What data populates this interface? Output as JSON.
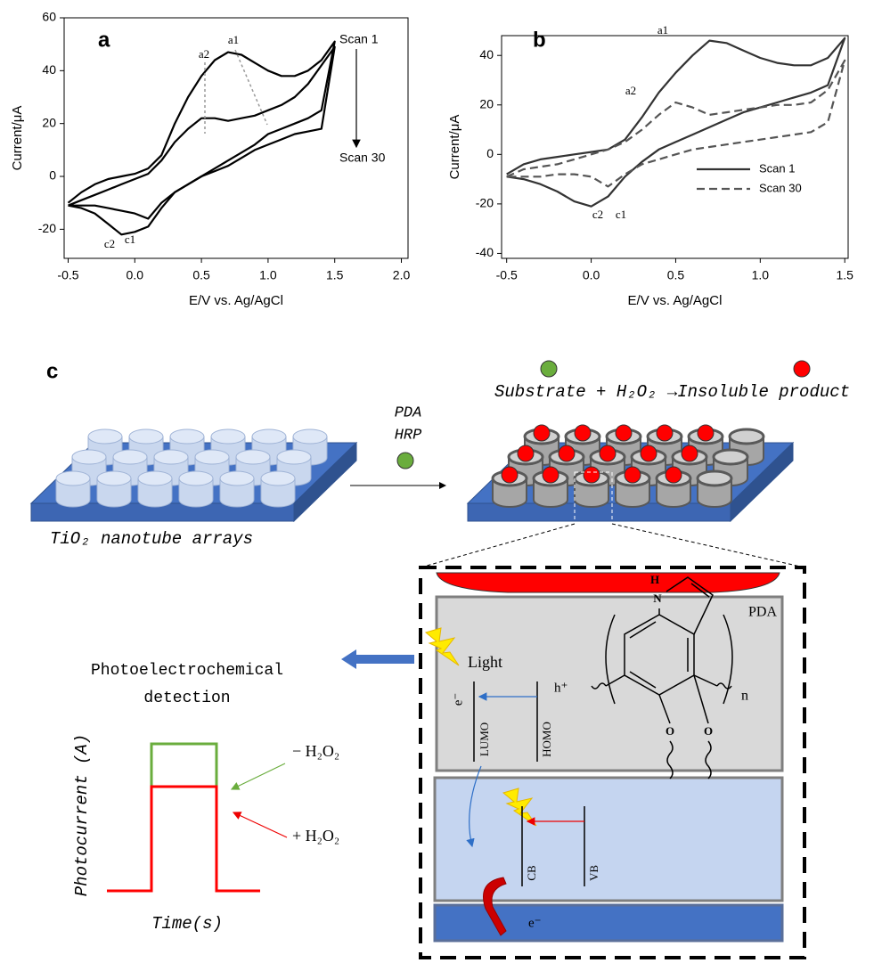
{
  "chart_data": [
    {
      "type": "line",
      "x_label": "E/V vs. Ag/AgCl",
      "y_label": "Current/μA",
      "x": [
        -0.5,
        -0.4,
        -0.3,
        -0.2,
        -0.1,
        0,
        0.1,
        0.2,
        0.3,
        0.4,
        0.5,
        0.6,
        0.7,
        0.8,
        0.9,
        1.0,
        1.1,
        1.2,
        1.3,
        1.4,
        1.5,
        1.4,
        1.3,
        1.2,
        1.1,
        1.0,
        0.9,
        0.8,
        0.7,
        0.6,
        0.5,
        0.4,
        0.3,
        0.2,
        0.1,
        0,
        -0.1,
        -0.2,
        -0.3,
        -0.4,
        -0.5
      ],
      "series": [
        {
          "color": "#000000",
          "values": [
            -10,
            -6,
            -3,
            -1,
            0,
            1,
            3,
            8,
            20,
            30,
            38,
            44,
            47,
            46,
            43,
            40,
            38,
            38,
            40,
            44,
            51,
            25,
            22,
            20,
            18,
            16,
            12,
            9,
            6,
            3,
            0,
            -3,
            -6,
            -12,
            -19,
            -21,
            -22,
            -18,
            -14,
            -12,
            -11
          ]
        },
        {
          "color": "#000000",
          "values": [
            -11,
            -9,
            -7,
            -5,
            -3,
            -1,
            1,
            6,
            13,
            18,
            22,
            22,
            21,
            22,
            23,
            25,
            27,
            30,
            35,
            42,
            49,
            18,
            17,
            16,
            14,
            12,
            10,
            7,
            4,
            2,
            0,
            -3,
            -6,
            -10,
            -16,
            -14,
            -13,
            -12,
            -11,
            -11,
            -11
          ]
        }
      ],
      "xlim": [
        -0.53,
        2.05
      ],
      "ylim": [
        -31,
        60
      ],
      "xticks": [
        -0.5,
        {
          "value": 0,
          "label": "0.0"
        },
        0.5,
        {
          "value": 1,
          "label": "1.0"
        },
        1.5,
        {
          "value": 2,
          "label": "2.0"
        }
      ],
      "yticks": [
        -20,
        0,
        20,
        40,
        60
      ],
      "annotations": [
        "a",
        "a1",
        "a2",
        "c1",
        "c2",
        "Scan 1",
        "Scan 30"
      ]
    },
    {
      "type": "line",
      "x_label": "E/V vs. Ag/AgCl",
      "y_label": "Current/μA",
      "x": [
        -0.5,
        -0.4,
        -0.3,
        -0.2,
        -0.1,
        0,
        0.1,
        0.2,
        0.3,
        0.4,
        0.5,
        0.6,
        0.7,
        0.8,
        0.9,
        1.0,
        1.1,
        1.2,
        1.3,
        1.4,
        1.5,
        1.4,
        1.3,
        1.2,
        1.1,
        1.0,
        0.9,
        0.8,
        0.7,
        0.6,
        0.5,
        0.4,
        0.3,
        0.2,
        0.1,
        0,
        -0.1,
        -0.2,
        -0.3,
        -0.4,
        -0.5
      ],
      "series": [
        {
          "name": "Scan 1",
          "color": "#333333",
          "values": [
            -8,
            -4,
            -2,
            -1,
            0,
            1,
            2,
            6,
            15,
            25,
            33,
            40,
            46,
            45,
            42,
            39,
            37,
            36,
            36,
            39,
            47,
            28,
            25,
            23,
            21,
            19,
            17,
            14,
            11,
            8,
            5,
            2,
            -3,
            -9,
            -17,
            -21,
            -19,
            -15,
            -12,
            -10,
            -9
          ]
        },
        {
          "name": "Scan 30",
          "color": "#555555",
          "dashed": true,
          "values": [
            -9,
            -6,
            -5,
            -4,
            -2,
            0,
            2,
            5,
            10,
            16,
            21,
            19,
            16,
            17,
            18,
            19,
            20,
            20,
            21,
            26,
            38,
            13,
            9,
            8,
            7,
            6,
            5,
            4,
            3,
            2,
            0,
            -2,
            -4,
            -8,
            -13,
            -9,
            -8,
            -8,
            -9,
            -9,
            -9
          ]
        }
      ],
      "xlim": [
        -0.53,
        1.52
      ],
      "ylim": [
        -42,
        48
      ],
      "xticks": [
        -0.5,
        {
          "value": 0,
          "label": "0.0"
        },
        0.5,
        {
          "value": 1,
          "label": "1.0"
        },
        1.5
      ],
      "yticks": [
        -40,
        -20,
        0,
        20,
        40
      ],
      "legend": "lower right",
      "annotations": [
        "b",
        "a1",
        "a2",
        "c2",
        "c1"
      ]
    }
  ],
  "diagram": {
    "panel_label": "c",
    "reaction": "Substrate + H₂O₂ →Insoluble product",
    "reagents": [
      "PDA",
      "HRP"
    ],
    "substrate_label": "TiO₂ nanotube arrays",
    "pda_label": "PDA",
    "light": "Light",
    "electron": "e⁻",
    "hole": "h⁺",
    "repeat": "n",
    "levels": [
      "LUMO",
      "HOMO",
      "CB",
      "VB"
    ],
    "electron_out": "e⁻",
    "atoms": [
      "H",
      "N",
      "O",
      "O"
    ],
    "detection": [
      "Photoelectrochemical",
      "detection"
    ],
    "y_label": "Photocurrent (A)",
    "x_label": "Time(s)",
    "minus": "− H₂O₂",
    "plus": "+ H₂O₂"
  }
}
